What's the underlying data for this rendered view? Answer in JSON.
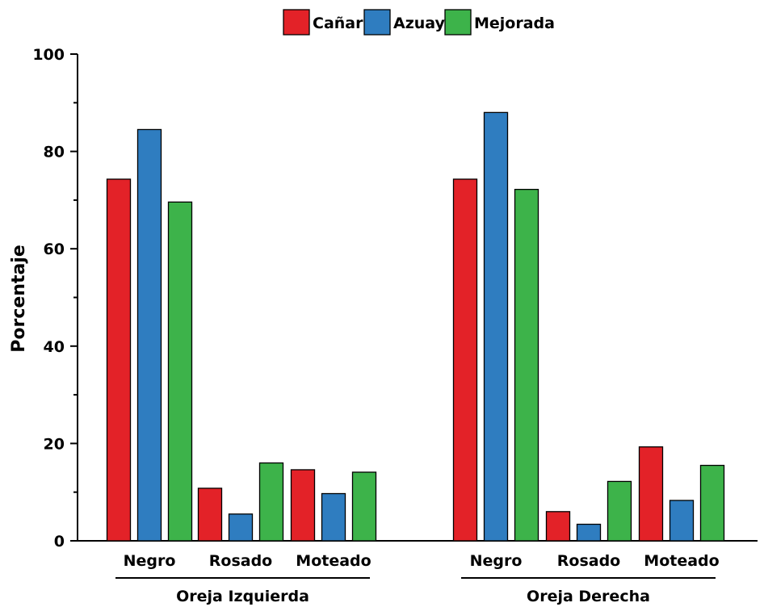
{
  "chart_data": {
    "type": "bar",
    "title": "",
    "xlabel": "",
    "ylabel": "Porcentaje",
    "ylim": [
      0,
      100
    ],
    "yticks": [
      0,
      20,
      40,
      60,
      80,
      100
    ],
    "legend_position": "top-center",
    "groups": [
      {
        "name": "Oreja Izquierda",
        "categories": [
          "Negro",
          "Rosado",
          "Moteado"
        ]
      },
      {
        "name": "Oreja Derecha",
        "categories": [
          "Negro",
          "Rosado",
          "Moteado"
        ]
      }
    ],
    "series": [
      {
        "name": "Cañar",
        "color": "#e32228",
        "values": [
          74.3,
          10.8,
          14.6,
          74.3,
          6.0,
          19.3
        ]
      },
      {
        "name": "Azuay",
        "color": "#2f7dc0",
        "values": [
          84.5,
          5.5,
          9.7,
          88.0,
          3.4,
          8.3
        ]
      },
      {
        "name": "Mejorada",
        "color": "#3db34a",
        "values": [
          69.6,
          16.0,
          14.1,
          72.2,
          12.2,
          15.5
        ]
      }
    ]
  }
}
